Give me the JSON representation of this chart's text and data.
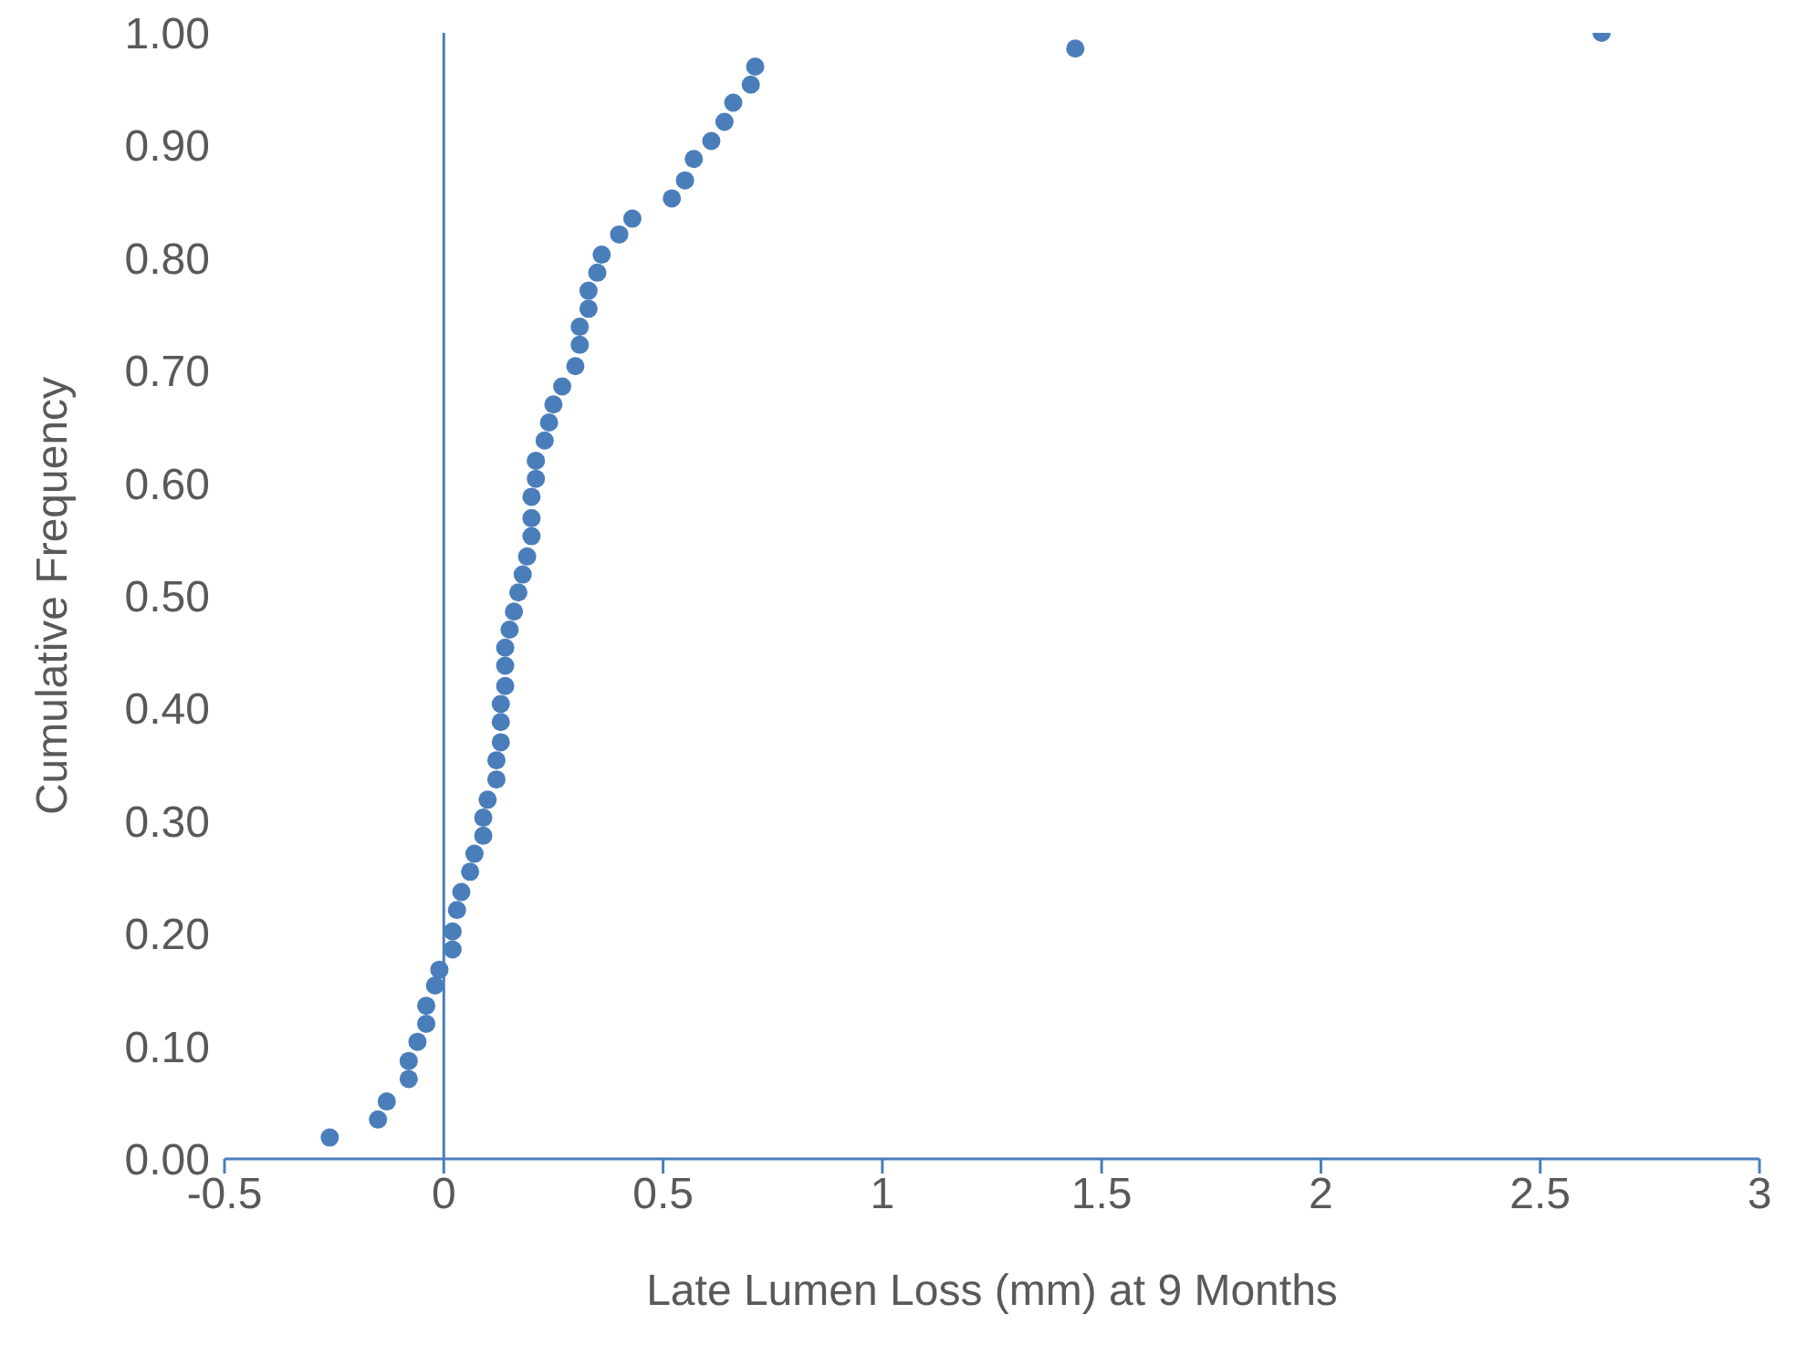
{
  "chart_data": {
    "type": "scatter",
    "xlabel": "Late Lumen Loss (mm)  at 9 Months",
    "ylabel": "Cumulative Frequency",
    "color": "#4a7ebb",
    "marker": "circle",
    "grid": false,
    "legend": false,
    "x": [
      -0.26,
      -0.15,
      -0.13,
      -0.08,
      -0.08,
      -0.06,
      -0.04,
      -0.04,
      -0.02,
      -0.01,
      0.02,
      0.02,
      0.03,
      0.04,
      0.06,
      0.07,
      0.09,
      0.09,
      0.1,
      0.12,
      0.12,
      0.13,
      0.13,
      0.13,
      0.14,
      0.14,
      0.14,
      0.15,
      0.16,
      0.17,
      0.18,
      0.19,
      0.2,
      0.2,
      0.2,
      0.21,
      0.21,
      0.23,
      0.24,
      0.25,
      0.27,
      0.3,
      0.31,
      0.31,
      0.33,
      0.33,
      0.35,
      0.36,
      0.4,
      0.43,
      0.52,
      0.55,
      0.57,
      0.61,
      0.64,
      0.66,
      0.7,
      0.71,
      1.44,
      2.64
    ],
    "values": [
      0.019,
      0.035,
      0.051,
      0.071,
      0.087,
      0.104,
      0.12,
      0.136,
      0.154,
      0.168,
      0.186,
      0.202,
      0.221,
      0.237,
      0.255,
      0.271,
      0.287,
      0.303,
      0.319,
      0.337,
      0.354,
      0.37,
      0.388,
      0.404,
      0.42,
      0.438,
      0.454,
      0.47,
      0.486,
      0.503,
      0.519,
      0.535,
      0.553,
      0.569,
      0.588,
      0.604,
      0.62,
      0.638,
      0.654,
      0.67,
      0.686,
      0.704,
      0.723,
      0.739,
      0.755,
      0.771,
      0.787,
      0.803,
      0.821,
      0.835,
      0.853,
      0.869,
      0.888,
      0.904,
      0.921,
      0.938,
      0.954,
      0.97,
      0.986,
      1.0
    ],
    "xlim": [
      -0.5,
      3
    ],
    "xticks": [
      -0.5,
      0,
      0.5,
      1,
      1.5,
      2,
      2.5,
      3
    ],
    "ylim": [
      0,
      1
    ],
    "yticks": [
      {
        "value": 0,
        "label": "0.00"
      },
      {
        "value": 0.1,
        "label": "0.10"
      },
      {
        "value": 0.2,
        "label": "0.20"
      },
      {
        "value": 0.3,
        "label": "0.30"
      },
      {
        "value": 0.4,
        "label": "0.40"
      },
      {
        "value": 0.5,
        "label": "0.50"
      },
      {
        "value": 0.6,
        "label": "0.60"
      },
      {
        "value": 0.7,
        "label": "0.70"
      },
      {
        "value": 0.8,
        "label": "0.80"
      },
      {
        "value": 0.9,
        "label": "0.90"
      },
      {
        "value": 1,
        "label": "1.00"
      }
    ],
    "ref_lines": [
      {
        "axis": "x",
        "value": 0,
        "color": "#4a7ebb"
      }
    ]
  }
}
